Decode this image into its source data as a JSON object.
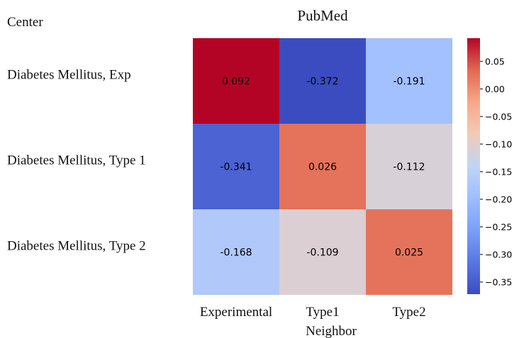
{
  "chart_data": {
    "type": "heatmap",
    "title": "PubMed",
    "ylabel": "Center",
    "xlabel": "Neighbor",
    "x_categories": [
      "Experimental",
      "Type1",
      "Type2"
    ],
    "y_categories": [
      "Diabetes Mellitus, Exp",
      "Diabetes Mellitus, Type 1",
      "Diabetes Mellitus, Type 2"
    ],
    "values": [
      [
        0.092,
        -0.372,
        -0.191
      ],
      [
        -0.341,
        0.026,
        -0.112
      ],
      [
        -0.168,
        -0.109,
        0.025
      ]
    ],
    "cell_labels": [
      [
        "0.092",
        "-0.372",
        "-0.191"
      ],
      [
        "-0.341",
        "0.026",
        "-0.112"
      ],
      [
        "-0.168",
        "-0.109",
        "0.025"
      ]
    ],
    "colormap": "coolwarm",
    "colorbar": {
      "vmin": -0.372,
      "vmax": 0.092,
      "ticks": [
        0.05,
        0.0,
        -0.05,
        -0.1,
        -0.15,
        -0.2,
        -0.25,
        -0.3,
        -0.35
      ],
      "tick_labels": [
        "0.05",
        "0.00",
        "−0.05",
        "−0.10",
        "−0.15",
        "−0.20",
        "−0.25",
        "−0.30",
        "−0.35"
      ]
    }
  }
}
